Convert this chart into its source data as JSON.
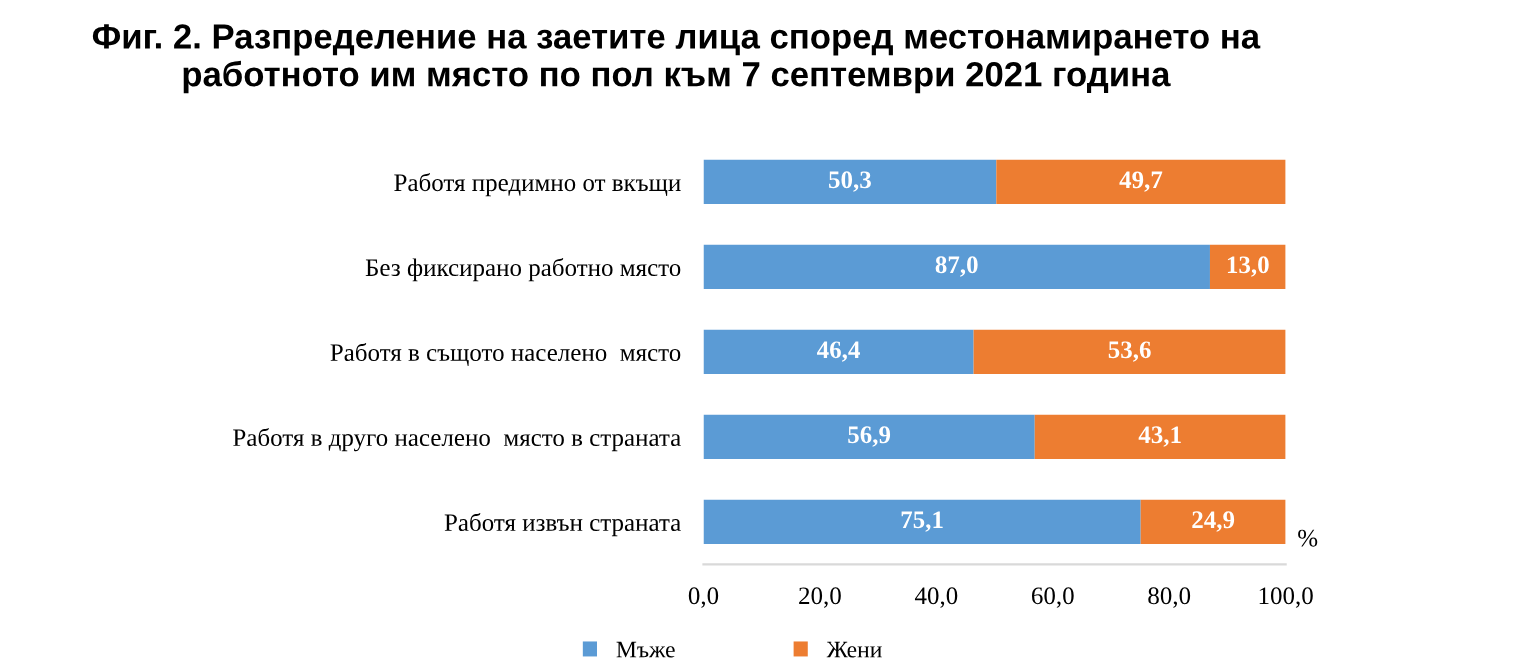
{
  "chart_data": {
    "type": "bar",
    "orientation": "horizontal",
    "stacked": true,
    "title": "Фиг. 2. Разпределение на заетите лица според местонамирането на\nработното им място по пол към 7 септември 2021 година",
    "xlabel": "%",
    "categories": [
      "Работя предимно от вкъщи",
      "Без фиксирано работно място",
      "Работя в същото населено  място",
      "Работя в друго населено  място в страната",
      "Работя извън страната"
    ],
    "series": [
      {
        "name": "Мъже",
        "color": "#5b9bd5",
        "values": [
          50.3,
          87.0,
          46.4,
          56.9,
          75.1
        ],
        "value_labels": [
          "50,3",
          "87,0",
          "46,4",
          "56,9",
          "75,1"
        ]
      },
      {
        "name": "Жени",
        "color": "#ed7d31",
        "values": [
          49.7,
          13.0,
          53.6,
          43.1,
          24.9
        ],
        "value_labels": [
          "49,7",
          "13,0",
          "53,6",
          "43,1",
          "24,9"
        ]
      }
    ],
    "xlim": [
      0,
      100
    ],
    "xticks": [
      {
        "value": 0,
        "label": "0,0"
      },
      {
        "value": 20,
        "label": "20,0"
      },
      {
        "value": 40,
        "label": "40,0"
      },
      {
        "value": 60,
        "label": "60,0"
      },
      {
        "value": 80,
        "label": "80,0"
      },
      {
        "value": 100,
        "label": "100,0"
      }
    ],
    "grid": false,
    "legend": "bottom"
  }
}
